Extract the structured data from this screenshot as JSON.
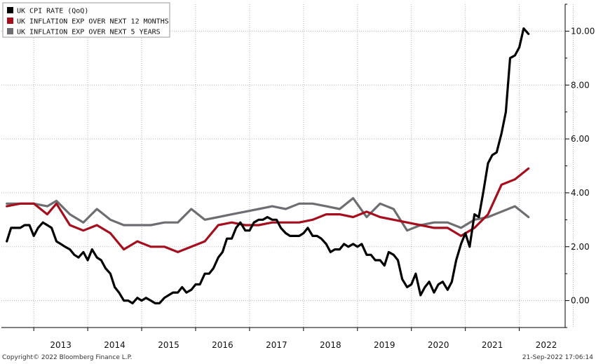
{
  "chart_data": {
    "type": "line",
    "title": "",
    "xlabel": "",
    "ylabel": "",
    "x_tick_labels": [
      "2013",
      "2014",
      "2015",
      "2016",
      "2017",
      "2018",
      "2019",
      "2020",
      "2021",
      "2022"
    ],
    "y_ticks": [
      0,
      2,
      4,
      6,
      8,
      10
    ],
    "y_tick_labels": [
      "0.00",
      "2.00",
      "4.00",
      "6.00",
      "8.00",
      "10.00"
    ],
    "ylim": [
      -1,
      11
    ],
    "xlim": [
      2012.4,
      2022.85
    ],
    "grid": true,
    "legend": "top-left",
    "series": [
      {
        "name": "UK CPI RATE (QoQ)",
        "color": "#000000",
        "points": [
          [
            2012.5,
            2.2
          ],
          [
            2012.58,
            2.7
          ],
          [
            2012.67,
            2.7
          ],
          [
            2012.75,
            2.7
          ],
          [
            2012.83,
            2.8
          ],
          [
            2012.92,
            2.8
          ],
          [
            2013.0,
            2.4
          ],
          [
            2013.08,
            2.7
          ],
          [
            2013.17,
            2.9
          ],
          [
            2013.25,
            2.8
          ],
          [
            2013.33,
            2.7
          ],
          [
            2013.42,
            2.2
          ],
          [
            2013.5,
            2.1
          ],
          [
            2013.58,
            2.0
          ],
          [
            2013.67,
            1.9
          ],
          [
            2013.75,
            1.7
          ],
          [
            2013.83,
            1.6
          ],
          [
            2013.92,
            1.8
          ],
          [
            2014.0,
            1.5
          ],
          [
            2014.08,
            1.9
          ],
          [
            2014.17,
            1.6
          ],
          [
            2014.25,
            1.5
          ],
          [
            2014.33,
            1.2
          ],
          [
            2014.42,
            1.0
          ],
          [
            2014.5,
            0.5
          ],
          [
            2014.58,
            0.3
          ],
          [
            2014.67,
            0.0
          ],
          [
            2014.75,
            0.0
          ],
          [
            2014.83,
            -0.1
          ],
          [
            2014.92,
            0.1
          ],
          [
            2015.0,
            0.0
          ],
          [
            2015.08,
            0.1
          ],
          [
            2015.17,
            0.0
          ],
          [
            2015.25,
            -0.1
          ],
          [
            2015.33,
            -0.1
          ],
          [
            2015.42,
            0.1
          ],
          [
            2015.5,
            0.2
          ],
          [
            2015.58,
            0.3
          ],
          [
            2015.67,
            0.3
          ],
          [
            2015.75,
            0.5
          ],
          [
            2015.83,
            0.3
          ],
          [
            2015.92,
            0.4
          ],
          [
            2016.0,
            0.6
          ],
          [
            2016.08,
            0.6
          ],
          [
            2016.17,
            1.0
          ],
          [
            2016.25,
            1.0
          ],
          [
            2016.33,
            1.2
          ],
          [
            2016.42,
            1.6
          ],
          [
            2016.5,
            1.8
          ],
          [
            2016.58,
            2.3
          ],
          [
            2016.67,
            2.3
          ],
          [
            2016.75,
            2.7
          ],
          [
            2016.83,
            2.9
          ],
          [
            2016.92,
            2.6
          ],
          [
            2017.0,
            2.6
          ],
          [
            2017.08,
            2.9
          ],
          [
            2017.17,
            3.0
          ],
          [
            2017.25,
            3.0
          ],
          [
            2017.33,
            3.1
          ],
          [
            2017.42,
            3.0
          ],
          [
            2017.5,
            3.0
          ],
          [
            2017.58,
            2.7
          ],
          [
            2017.67,
            2.5
          ],
          [
            2017.75,
            2.4
          ],
          [
            2017.83,
            2.4
          ],
          [
            2017.92,
            2.4
          ],
          [
            2018.0,
            2.5
          ],
          [
            2018.08,
            2.7
          ],
          [
            2018.17,
            2.4
          ],
          [
            2018.25,
            2.4
          ],
          [
            2018.33,
            2.3
          ],
          [
            2018.42,
            2.1
          ],
          [
            2018.5,
            1.8
          ],
          [
            2018.58,
            1.9
          ],
          [
            2018.67,
            1.9
          ],
          [
            2018.75,
            2.1
          ],
          [
            2018.83,
            2.0
          ],
          [
            2018.92,
            2.1
          ],
          [
            2019.0,
            2.0
          ],
          [
            2019.08,
            2.1
          ],
          [
            2019.17,
            1.7
          ],
          [
            2019.25,
            1.7
          ],
          [
            2019.33,
            1.5
          ],
          [
            2019.42,
            1.5
          ],
          [
            2019.5,
            1.3
          ],
          [
            2019.58,
            1.8
          ],
          [
            2019.67,
            1.7
          ],
          [
            2019.75,
            1.5
          ],
          [
            2019.83,
            0.8
          ],
          [
            2019.92,
            0.5
          ],
          [
            2020.0,
            0.6
          ],
          [
            2020.08,
            1.0
          ],
          [
            2020.17,
            0.2
          ],
          [
            2020.25,
            0.5
          ],
          [
            2020.33,
            0.7
          ],
          [
            2020.42,
            0.3
          ],
          [
            2020.5,
            0.6
          ],
          [
            2020.58,
            0.7
          ],
          [
            2020.67,
            0.4
          ],
          [
            2020.75,
            0.7
          ],
          [
            2020.83,
            1.5
          ],
          [
            2020.92,
            2.1
          ],
          [
            2021.0,
            2.5
          ],
          [
            2021.08,
            2.0
          ],
          [
            2021.17,
            3.2
          ],
          [
            2021.25,
            3.1
          ],
          [
            2021.33,
            4.0
          ],
          [
            2021.42,
            5.1
          ],
          [
            2021.5,
            5.4
          ],
          [
            2021.58,
            5.5
          ],
          [
            2021.67,
            6.2
          ],
          [
            2021.75,
            7.0
          ],
          [
            2021.83,
            9.0
          ],
          [
            2021.92,
            9.1
          ],
          [
            2022.0,
            9.4
          ],
          [
            2022.08,
            10.1
          ],
          [
            2022.17,
            9.9
          ]
        ]
      },
      {
        "name": "UK INFLATION EXP OVER NEXT 12 MONTHS",
        "color": "#a50e1c",
        "points": [
          [
            2012.5,
            3.5
          ],
          [
            2012.75,
            3.6
          ],
          [
            2013.0,
            3.6
          ],
          [
            2013.25,
            3.2
          ],
          [
            2013.42,
            3.6
          ],
          [
            2013.67,
            2.8
          ],
          [
            2013.92,
            2.6
          ],
          [
            2014.17,
            2.8
          ],
          [
            2014.42,
            2.5
          ],
          [
            2014.67,
            1.9
          ],
          [
            2014.92,
            2.2
          ],
          [
            2015.17,
            2.0
          ],
          [
            2015.42,
            2.0
          ],
          [
            2015.67,
            1.8
          ],
          [
            2015.92,
            2.0
          ],
          [
            2016.17,
            2.2
          ],
          [
            2016.42,
            2.8
          ],
          [
            2016.67,
            2.9
          ],
          [
            2016.92,
            2.8
          ],
          [
            2017.17,
            2.8
          ],
          [
            2017.42,
            2.9
          ],
          [
            2017.67,
            2.9
          ],
          [
            2017.92,
            2.9
          ],
          [
            2018.17,
            3.0
          ],
          [
            2018.42,
            3.2
          ],
          [
            2018.67,
            3.2
          ],
          [
            2018.92,
            3.1
          ],
          [
            2019.17,
            3.3
          ],
          [
            2019.42,
            3.1
          ],
          [
            2019.67,
            3.0
          ],
          [
            2019.92,
            2.9
          ],
          [
            2020.17,
            2.8
          ],
          [
            2020.42,
            2.7
          ],
          [
            2020.67,
            2.7
          ],
          [
            2020.92,
            2.4
          ],
          [
            2021.17,
            2.7
          ],
          [
            2021.42,
            3.2
          ],
          [
            2021.67,
            4.3
          ],
          [
            2021.92,
            4.5
          ],
          [
            2022.17,
            4.9
          ]
        ]
      },
      {
        "name": "UK INFLATION EXP OVER NEXT 5 YEARS",
        "color": "#6d6e71",
        "points": [
          [
            2012.5,
            3.6
          ],
          [
            2012.75,
            3.6
          ],
          [
            2013.0,
            3.6
          ],
          [
            2013.25,
            3.5
          ],
          [
            2013.42,
            3.7
          ],
          [
            2013.67,
            3.2
          ],
          [
            2013.92,
            2.9
          ],
          [
            2014.17,
            3.4
          ],
          [
            2014.42,
            3.0
          ],
          [
            2014.67,
            2.8
          ],
          [
            2014.92,
            2.8
          ],
          [
            2015.17,
            2.8
          ],
          [
            2015.42,
            2.9
          ],
          [
            2015.67,
            2.9
          ],
          [
            2015.92,
            3.4
          ],
          [
            2016.17,
            3.0
          ],
          [
            2016.42,
            3.1
          ],
          [
            2016.67,
            3.2
          ],
          [
            2016.92,
            3.3
          ],
          [
            2017.17,
            3.4
          ],
          [
            2017.42,
            3.5
          ],
          [
            2017.67,
            3.4
          ],
          [
            2017.92,
            3.6
          ],
          [
            2018.17,
            3.6
          ],
          [
            2018.42,
            3.5
          ],
          [
            2018.67,
            3.4
          ],
          [
            2018.92,
            3.8
          ],
          [
            2019.17,
            3.1
          ],
          [
            2019.42,
            3.6
          ],
          [
            2019.67,
            3.4
          ],
          [
            2019.92,
            2.6
          ],
          [
            2020.17,
            2.8
          ],
          [
            2020.42,
            2.9
          ],
          [
            2020.67,
            2.9
          ],
          [
            2020.92,
            2.7
          ],
          [
            2021.17,
            3.0
          ],
          [
            2021.42,
            3.1
          ],
          [
            2021.67,
            3.3
          ],
          [
            2021.92,
            3.5
          ],
          [
            2022.17,
            3.1
          ]
        ]
      }
    ]
  },
  "footer": {
    "copyright": "Copyright© 2022 Bloomberg Finance L.P.",
    "timestamp": "21-Sep-2022 17:06:14"
  }
}
